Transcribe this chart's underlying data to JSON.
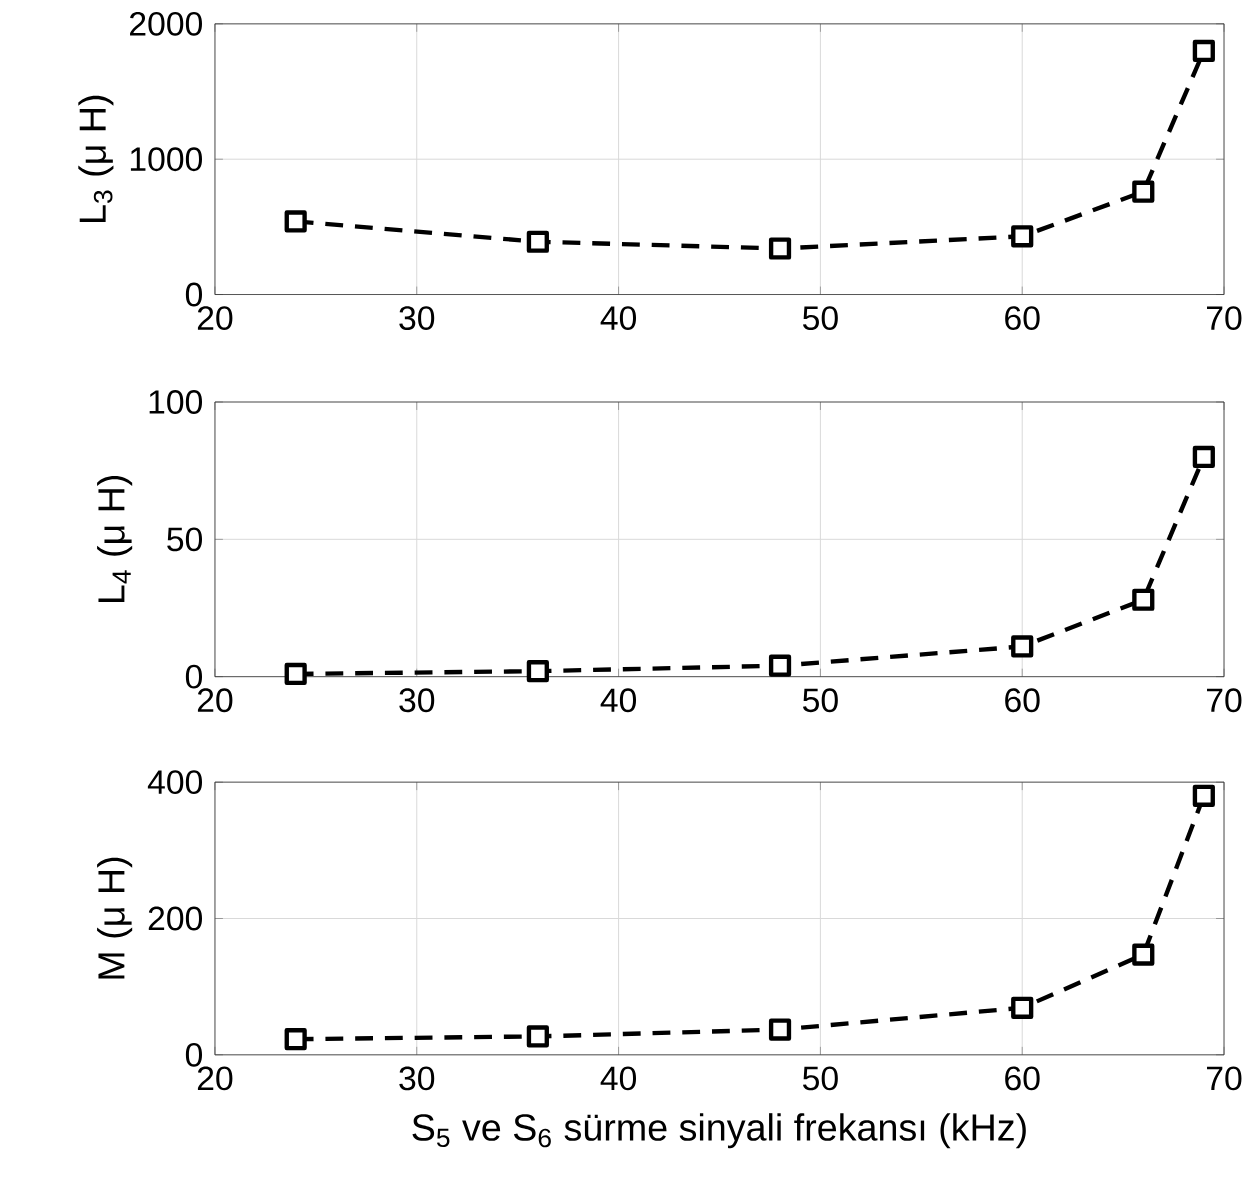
{
  "chart_data": [
    {
      "type": "line",
      "ylabel": "L$_{3}$ (μ H)",
      "x": [
        24,
        36,
        48,
        60,
        66,
        69
      ],
      "series": [
        {
          "color": "#000000",
          "values": [
            540,
            390,
            340,
            430,
            760,
            1800
          ]
        }
      ],
      "xlim": [
        20,
        70
      ],
      "ylim": [
        0,
        2000
      ],
      "xticks": [
        20,
        30,
        40,
        50,
        60,
        70
      ],
      "yticks": [
        0,
        1000,
        2000
      ],
      "grid": true,
      "marker": "square",
      "line_style": "dashed"
    },
    {
      "type": "line",
      "ylabel": "L$_{4}$ (μ H)",
      "x": [
        24,
        36,
        48,
        60,
        66,
        69
      ],
      "series": [
        {
          "color": "#000000",
          "values": [
            1,
            2,
            4,
            11,
            28,
            80
          ]
        }
      ],
      "xlim": [
        20,
        70
      ],
      "ylim": [
        0,
        100
      ],
      "xticks": [
        20,
        30,
        40,
        50,
        60,
        70
      ],
      "yticks": [
        0,
        50,
        100
      ],
      "grid": true,
      "marker": "square",
      "line_style": "dashed"
    },
    {
      "type": "line",
      "xlabel": "S$_{5}$ ve S$_{6}$ sürme sinyali frekansı (kHz)",
      "ylabel": "M (μ H)",
      "x": [
        24,
        36,
        48,
        60,
        66,
        69
      ],
      "series": [
        {
          "color": "#000000",
          "values": [
            23,
            27,
            37,
            69,
            147,
            380
          ]
        }
      ],
      "xlim": [
        20,
        70
      ],
      "ylim": [
        0,
        400
      ],
      "xticks": [
        20,
        30,
        40,
        50,
        60,
        70
      ],
      "yticks": [
        0,
        200,
        400
      ],
      "grid": true,
      "marker": "square",
      "line_style": "dashed"
    }
  ]
}
